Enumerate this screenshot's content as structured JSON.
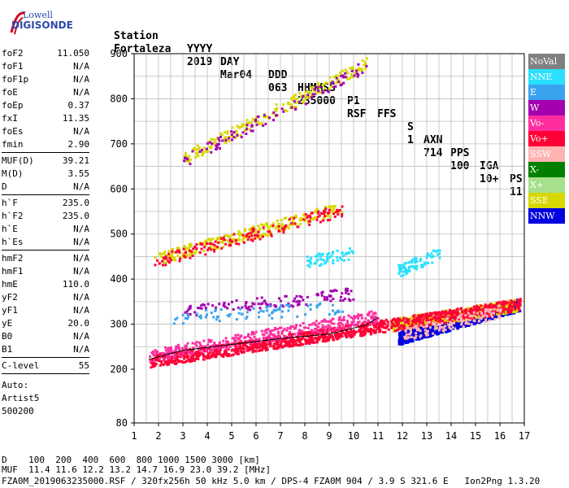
{
  "logo": {
    "line1": "Lowell",
    "line2": "DIGISONDE"
  },
  "header": {
    "labels": [
      "Station",
      "YYYY",
      "DAY",
      "DDD",
      "HHMMSS",
      "P1",
      "FFS",
      "S",
      "AXN",
      "PPS",
      "IGA",
      "PS"
    ],
    "values": [
      "Fortaleza",
      "2019",
      "Mar04",
      "063",
      "235000",
      "RSF",
      "",
      "1",
      "714",
      "100",
      "10+",
      "11"
    ]
  },
  "params": {
    "group1": [
      {
        "name": "foF2",
        "value": "11.050"
      },
      {
        "name": "foF1",
        "value": "N/A"
      },
      {
        "name": "foF1p",
        "value": "N/A"
      },
      {
        "name": "foE",
        "value": "N/A"
      },
      {
        "name": "foEp",
        "value": "0.37"
      },
      {
        "name": "fxI",
        "value": "11.35"
      },
      {
        "name": "foEs",
        "value": "N/A"
      },
      {
        "name": "fmin",
        "value": "2.90"
      }
    ],
    "group2": [
      {
        "name": "MUF(D)",
        "value": "39.21"
      },
      {
        "name": "M(D)",
        "value": "3.55"
      },
      {
        "name": "D",
        "value": "N/A"
      }
    ],
    "group3": [
      {
        "name": "h`F",
        "value": "235.0"
      },
      {
        "name": "h`F2",
        "value": "235.0"
      },
      {
        "name": "h`E",
        "value": "N/A"
      },
      {
        "name": "h`Es",
        "value": "N/A"
      }
    ],
    "group4": [
      {
        "name": "hmF2",
        "value": "N/A"
      },
      {
        "name": "hmF1",
        "value": "N/A"
      },
      {
        "name": "hmE",
        "value": "110.0"
      },
      {
        "name": "yF2",
        "value": "N/A"
      },
      {
        "name": "yF1",
        "value": "N/A"
      },
      {
        "name": "yE",
        "value": "20.0"
      },
      {
        "name": "B0",
        "value": "N/A"
      },
      {
        "name": "B1",
        "value": "N/A"
      }
    ],
    "group5": [
      {
        "name": "C-level",
        "value": "55"
      }
    ]
  },
  "auto": {
    "line1": "Auto:",
    "line2": "Artist5",
    "line3": "500200"
  },
  "footer": {
    "d_line": "D    100  200  400  600  800 1000 1500 3000 [km]",
    "muf_line": "MUF  11.4 11.6 12.2 13.2 14.7 16.9 23.0 39.2 [MHz]",
    "file_line": "FZA0M_2019063235000.RSF / 320fx256h 50 kHz 5.0 km / DPS-4 FZA0M 904 / 3.9 S 321.6 E   Ion2Png 1.3.20"
  },
  "legend": [
    {
      "label": "NoVal",
      "color": "#808080",
      "text_color": "#ffffff"
    },
    {
      "label": "NNE",
      "color": "#29e0ff",
      "text_color": "#ffffff"
    },
    {
      "label": "E",
      "color": "#3aa3f0",
      "text_color": "#ffffff"
    },
    {
      "label": "W",
      "color": "#a400b0",
      "text_color": "#ffffff"
    },
    {
      "label": "Vo-",
      "color": "#ff2ea0",
      "text_color": "#ffffff"
    },
    {
      "label": "Vo+",
      "color": "#ff0036",
      "text_color": "#ffffff"
    },
    {
      "label": "SSW",
      "color": "#ffb3b3",
      "text_color": "#ffffff"
    },
    {
      "label": "X-",
      "color": "#008000",
      "text_color": "#ffffff"
    },
    {
      "label": "X+",
      "color": "#a6e08a",
      "text_color": "#ffffff"
    },
    {
      "label": "SSE",
      "color": "#d8d800",
      "text_color": "#ffffff"
    },
    {
      "label": "NNW",
      "color": "#0000e0",
      "text_color": "#ffffff"
    }
  ],
  "chart_data": {
    "type": "scatter",
    "xlim": [
      1,
      17
    ],
    "ylim": [
      80,
      900
    ],
    "x_ticks": [
      1,
      2,
      3,
      4,
      5,
      6,
      7,
      8,
      9,
      10,
      11,
      12,
      13,
      14,
      15,
      16,
      17
    ],
    "y_ticks": [
      80,
      200,
      300,
      400,
      500,
      600,
      700,
      800,
      900
    ],
    "grid": true,
    "legend_position": "right",
    "traces": [
      {
        "name": "Vo+",
        "x_range": [
          1.6,
          11.4
        ],
        "y_start": 220,
        "y_end": 300,
        "density": 900
      },
      {
        "name": "Vo-",
        "x_range": [
          1.6,
          11.0
        ],
        "y_start": 232,
        "y_end": 320,
        "density": 350
      },
      {
        "name": "W",
        "x_range": [
          3.0,
          10.0
        ],
        "y_start": 330,
        "y_end": 370,
        "density": 120
      },
      {
        "name": "E",
        "x_range": [
          2.5,
          9.5
        ],
        "y_start": 315,
        "y_end": 340,
        "density": 80
      },
      {
        "name": "SSE",
        "x_range": [
          1.8,
          9.5
        ],
        "y_start": 445,
        "y_end": 560,
        "density": 260
      },
      {
        "name": "Vo+",
        "x_range": [
          1.8,
          9.5
        ],
        "y_start": 440,
        "y_end": 555,
        "density": 160
      },
      {
        "name": "SSE",
        "x_range": [
          3.0,
          10.5
        ],
        "y_start": 670,
        "y_end": 880,
        "density": 220
      },
      {
        "name": "W",
        "x_range": [
          3.0,
          10.5
        ],
        "y_start": 665,
        "y_end": 875,
        "density": 100
      },
      {
        "name": "NNE",
        "x_range": [
          8.0,
          10.0
        ],
        "y_start": 440,
        "y_end": 460,
        "density": 60
      },
      {
        "name": "NNW",
        "x_range": [
          11.8,
          16.8
        ],
        "y_start": 270,
        "y_end": 345,
        "density": 900
      },
      {
        "name": "SSE",
        "x_range": [
          11.5,
          16.8
        ],
        "y_start": 300,
        "y_end": 345,
        "density": 500
      },
      {
        "name": "Vo+",
        "x_range": [
          11.5,
          16.8
        ],
        "y_start": 300,
        "y_end": 345,
        "density": 400
      },
      {
        "name": "SSW",
        "x_range": [
          12.0,
          16.0
        ],
        "y_start": 280,
        "y_end": 330,
        "density": 150
      },
      {
        "name": "NNE",
        "x_range": [
          11.8,
          13.5
        ],
        "y_start": 420,
        "y_end": 460,
        "density": 80
      }
    ],
    "trace_line": {
      "x": [
        1.6,
        3.0,
        5.0,
        7.0,
        9.0,
        10.5,
        11.0
      ],
      "y": [
        222,
        242,
        255,
        268,
        278,
        298,
        315
      ]
    }
  }
}
